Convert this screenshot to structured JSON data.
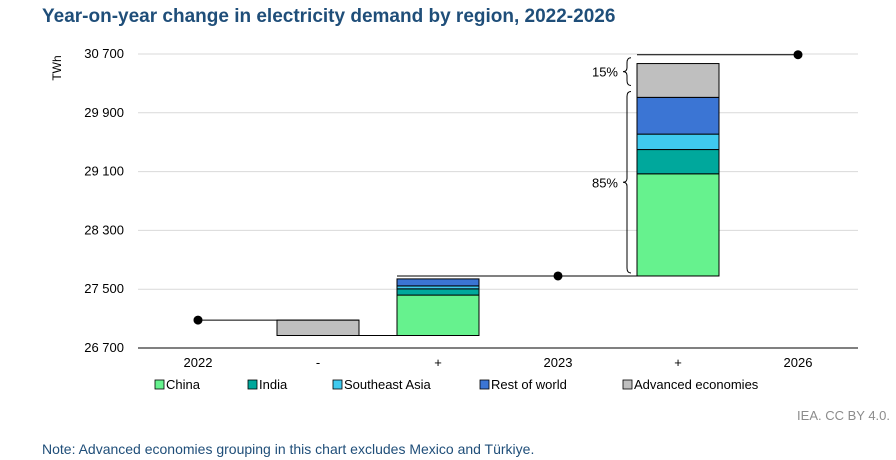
{
  "chart_data": {
    "type": "bar",
    "subtype": "waterfall",
    "title": "Year-on-year change in electricity demand by region, 2022-2026",
    "ylabel": "TWh",
    "xlabel": "",
    "ylim": [
      26700,
      30700
    ],
    "yticks": [
      26700,
      27500,
      28300,
      29100,
      29900,
      30700
    ],
    "ytick_labels": [
      "26 700",
      "27 500",
      "28 300",
      "29 100",
      "29 900",
      "30 700"
    ],
    "categories": [
      "2022",
      "-",
      "+",
      "2023",
      "+",
      "2026"
    ],
    "totals": [
      {
        "category": "2022",
        "value": 27080
      },
      {
        "category": "2023",
        "value": 27680
      },
      {
        "category": "2026",
        "value": 30690
      }
    ],
    "series": [
      {
        "name": "China",
        "color": "#66f28e",
        "values": [
          null,
          0,
          550,
          null,
          1390,
          null
        ]
      },
      {
        "name": "India",
        "color": "#00a89c",
        "values": [
          null,
          0,
          85,
          null,
          330,
          null
        ]
      },
      {
        "name": "Southeast Asia",
        "color": "#3fcaef",
        "values": [
          null,
          0,
          40,
          null,
          210,
          null
        ]
      },
      {
        "name": "Rest of world",
        "color": "#3b75d4",
        "values": [
          null,
          0,
          95,
          null,
          500,
          null
        ]
      },
      {
        "name": "Advanced economies",
        "color": "#bfbfbf",
        "values": [
          null,
          -210,
          0,
          null,
          460,
          null
        ]
      }
    ],
    "grid": true,
    "legend_position": "bottom",
    "annotations": [
      {
        "text": "15%",
        "category_index": 4,
        "from": 30230,
        "to": 30690
      },
      {
        "text": "85%",
        "category_index": 4,
        "from": 27680,
        "to": 30230
      }
    ]
  },
  "labels": {
    "title": "Year-on-year change in electricity demand by region, 2022-2026",
    "source": "IEA. CC BY 4.0.",
    "note": "Note: Advanced economies grouping in this chart excludes Mexico and Türkiye."
  }
}
